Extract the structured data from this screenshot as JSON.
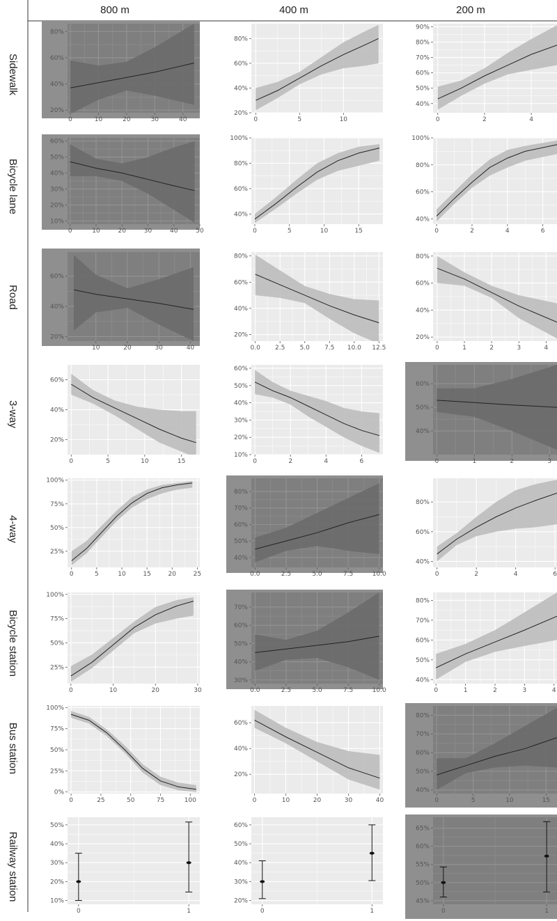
{
  "figure": {
    "columns": [
      "800 m",
      "400 m",
      "200 m"
    ],
    "rows": [
      "Sidewalk",
      "Bicycle lane",
      "Road",
      "3-way",
      "4-way",
      "Bicycle station",
      "Bus station",
      "Railway station"
    ],
    "panel_bg_normal": "#ebebeb",
    "panel_bg_dim": "#8f8f8f",
    "ribbon_color": "#bdbdbd",
    "line_color": "#222222",
    "gridline_color": "#ffffff"
  },
  "chart_data": [
    {
      "type": "line",
      "row": "Sidewalk",
      "column": "800 m",
      "dim": true,
      "xlim": [
        -1,
        46
      ],
      "ylim": [
        0.18,
        0.86
      ],
      "xticks": [
        0,
        10,
        20,
        30,
        40
      ],
      "yticks": [
        0.2,
        0.4,
        0.6,
        0.8
      ],
      "ytick_format": "percent",
      "x": [
        0,
        10,
        20,
        30,
        44
      ],
      "y": [
        0.37,
        0.41,
        0.45,
        0.49,
        0.56
      ],
      "lower": [
        0.17,
        0.28,
        0.35,
        0.31,
        0.24
      ],
      "upper": [
        0.58,
        0.54,
        0.57,
        0.68,
        0.86
      ]
    },
    {
      "type": "line",
      "row": "Sidewalk",
      "column": "400 m",
      "dim": false,
      "xlim": [
        -0.5,
        14.5
      ],
      "ylim": [
        0.2,
        0.92
      ],
      "xticks": [
        0,
        5,
        10
      ],
      "yticks": [
        0.2,
        0.4,
        0.6,
        0.8
      ],
      "ytick_format": "percent",
      "x": [
        0,
        2.5,
        5,
        7.5,
        10,
        12.5,
        14
      ],
      "y": [
        0.3,
        0.38,
        0.48,
        0.58,
        0.67,
        0.75,
        0.8
      ],
      "lower": [
        0.22,
        0.32,
        0.43,
        0.51,
        0.56,
        0.58,
        0.6
      ],
      "upper": [
        0.4,
        0.45,
        0.53,
        0.65,
        0.77,
        0.86,
        0.91
      ]
    },
    {
      "type": "line",
      "row": "Sidewalk",
      "column": "200 m",
      "dim": false,
      "xlim": [
        -0.2,
        5.1
      ],
      "ylim": [
        0.34,
        0.92
      ],
      "xticks": [
        0,
        2,
        4
      ],
      "yticks": [
        0.4,
        0.5,
        0.6,
        0.7,
        0.8,
        0.9
      ],
      "ytick_format": "percent",
      "x": [
        0,
        1,
        2,
        3,
        4,
        5.1
      ],
      "y": [
        0.43,
        0.5,
        0.58,
        0.65,
        0.72,
        0.78
      ],
      "lower": [
        0.36,
        0.45,
        0.53,
        0.59,
        0.62,
        0.65
      ],
      "upper": [
        0.51,
        0.55,
        0.63,
        0.73,
        0.82,
        0.91
      ]
    },
    {
      "type": "line",
      "row": "Bicycle lane",
      "column": "800 m",
      "dim": true,
      "xlim": [
        -1,
        50
      ],
      "ylim": [
        0.08,
        0.62
      ],
      "xticks": [
        0,
        10,
        20,
        30,
        40,
        50
      ],
      "yticks": [
        0.1,
        0.2,
        0.3,
        0.4,
        0.5,
        0.6
      ],
      "ytick_format": "percent",
      "x": [
        0,
        10,
        20,
        30,
        40,
        48
      ],
      "y": [
        0.47,
        0.43,
        0.4,
        0.36,
        0.32,
        0.29
      ],
      "lower": [
        0.38,
        0.38,
        0.35,
        0.27,
        0.17,
        0.09
      ],
      "upper": [
        0.58,
        0.49,
        0.46,
        0.5,
        0.56,
        0.6
      ]
    },
    {
      "type": "line",
      "row": "Bicycle lane",
      "column": "400 m",
      "dim": false,
      "xlim": [
        -0.5,
        18.5
      ],
      "ylim": [
        0.32,
        1.0
      ],
      "xticks": [
        0,
        5,
        10,
        15
      ],
      "yticks": [
        0.4,
        0.6,
        0.8,
        1.0
      ],
      "ytick_format": "percent",
      "x": [
        0,
        3,
        6,
        9,
        12,
        15,
        18
      ],
      "y": [
        0.36,
        0.48,
        0.61,
        0.73,
        0.82,
        0.88,
        0.92
      ],
      "lower": [
        0.33,
        0.44,
        0.56,
        0.67,
        0.74,
        0.78,
        0.82
      ],
      "upper": [
        0.4,
        0.53,
        0.67,
        0.8,
        0.88,
        0.93,
        0.95
      ]
    },
    {
      "type": "line",
      "row": "Bicycle lane",
      "column": "200 m",
      "dim": false,
      "xlim": [
        -0.2,
        6.8
      ],
      "ylim": [
        0.36,
        1.0
      ],
      "xticks": [
        0,
        2,
        4,
        6
      ],
      "yticks": [
        0.4,
        0.6,
        0.8,
        1.0
      ],
      "ytick_format": "percent",
      "x": [
        0,
        1,
        2,
        3,
        4,
        5,
        6.8
      ],
      "y": [
        0.42,
        0.55,
        0.67,
        0.78,
        0.85,
        0.9,
        0.95
      ],
      "lower": [
        0.38,
        0.51,
        0.63,
        0.72,
        0.78,
        0.83,
        0.88
      ],
      "upper": [
        0.47,
        0.6,
        0.73,
        0.84,
        0.91,
        0.94,
        0.98
      ]
    },
    {
      "type": "line",
      "row": "Road",
      "column": "800 m",
      "dim": true,
      "xlim": [
        1,
        43
      ],
      "ylim": [
        0.17,
        0.76
      ],
      "xticks": [
        10,
        20,
        30,
        40
      ],
      "yticks": [
        0.2,
        0.4,
        0.6
      ],
      "ytick_format": "percent",
      "x": [
        3,
        10,
        20,
        30,
        41
      ],
      "y": [
        0.51,
        0.48,
        0.45,
        0.42,
        0.38
      ],
      "lower": [
        0.24,
        0.36,
        0.39,
        0.28,
        0.17
      ],
      "upper": [
        0.74,
        0.61,
        0.52,
        0.58,
        0.66
      ]
    },
    {
      "type": "line",
      "row": "Road",
      "column": "400 m",
      "dim": false,
      "xlim": [
        -0.4,
        12.9
      ],
      "ylim": [
        0.15,
        0.83
      ],
      "xticks": [
        0,
        2.5,
        5,
        7.5,
        10,
        12.5
      ],
      "xtick_labels": [
        "0.0",
        "2.5",
        "5.0",
        "7.5",
        "10.0",
        "12.5"
      ],
      "yticks": [
        0.2,
        0.4,
        0.6,
        0.8
      ],
      "ytick_format": "percent",
      "x": [
        0,
        2.5,
        5,
        7.5,
        10,
        12.5
      ],
      "y": [
        0.66,
        0.58,
        0.5,
        0.42,
        0.35,
        0.29
      ],
      "lower": [
        0.5,
        0.48,
        0.44,
        0.32,
        0.21,
        0.13
      ],
      "upper": [
        0.81,
        0.69,
        0.57,
        0.51,
        0.47,
        0.46
      ]
    },
    {
      "type": "line",
      "row": "Road",
      "column": "200 m",
      "dim": false,
      "xlim": [
        -0.15,
        4.4
      ],
      "ylim": [
        0.17,
        0.83
      ],
      "xticks": [
        0,
        1,
        2,
        3,
        4
      ],
      "yticks": [
        0.2,
        0.4,
        0.6,
        0.8
      ],
      "ytick_format": "percent",
      "x": [
        0,
        1,
        2,
        3,
        4.4
      ],
      "y": [
        0.71,
        0.63,
        0.53,
        0.43,
        0.31
      ],
      "lower": [
        0.6,
        0.58,
        0.49,
        0.34,
        0.19
      ],
      "upper": [
        0.8,
        0.68,
        0.58,
        0.51,
        0.45
      ]
    },
    {
      "type": "line",
      "row": "3-way",
      "column": "800 m",
      "dim": false,
      "xlim": [
        -0.5,
        17.5
      ],
      "ylim": [
        0.1,
        0.7
      ],
      "xticks": [
        0,
        5,
        10,
        15
      ],
      "yticks": [
        0.2,
        0.4,
        0.6
      ],
      "ytick_format": "percent",
      "x": [
        0,
        3,
        6,
        9,
        12,
        15,
        17
      ],
      "y": [
        0.57,
        0.48,
        0.41,
        0.34,
        0.27,
        0.21,
        0.18
      ],
      "lower": [
        0.5,
        0.44,
        0.36,
        0.27,
        0.18,
        0.12,
        0.08
      ],
      "upper": [
        0.64,
        0.53,
        0.46,
        0.42,
        0.4,
        0.39,
        0.39
      ]
    },
    {
      "type": "line",
      "row": "3-way",
      "column": "400 m",
      "dim": false,
      "xlim": [
        -0.2,
        7.2
      ],
      "ylim": [
        0.1,
        0.62
      ],
      "xticks": [
        0,
        2,
        4,
        6
      ],
      "yticks": [
        0.1,
        0.2,
        0.3,
        0.4,
        0.5,
        0.6
      ],
      "ytick_format": "percent",
      "x": [
        0,
        1,
        2,
        3,
        4,
        5,
        6,
        7
      ],
      "y": [
        0.52,
        0.47,
        0.43,
        0.38,
        0.33,
        0.28,
        0.24,
        0.21
      ],
      "lower": [
        0.45,
        0.43,
        0.39,
        0.32,
        0.26,
        0.2,
        0.15,
        0.11
      ],
      "upper": [
        0.59,
        0.52,
        0.47,
        0.44,
        0.41,
        0.37,
        0.35,
        0.34
      ]
    },
    {
      "type": "line",
      "row": "3-way",
      "column": "200 m",
      "dim": true,
      "xlim": [
        -0.1,
        3.2
      ],
      "ylim": [
        0.3,
        0.68
      ],
      "xticks": [
        0,
        1,
        2,
        3
      ],
      "yticks": [
        0.4,
        0.5,
        0.6
      ],
      "ytick_format": "percent",
      "x": [
        0,
        1,
        2,
        3.2
      ],
      "y": [
        0.53,
        0.52,
        0.51,
        0.5
      ],
      "lower": [
        0.48,
        0.46,
        0.4,
        0.32
      ],
      "upper": [
        0.58,
        0.58,
        0.62,
        0.68
      ]
    },
    {
      "type": "line",
      "row": "4-way",
      "column": "800 m",
      "dim": false,
      "xlim": [
        -0.8,
        25.5
      ],
      "ylim": [
        0.08,
        1.02
      ],
      "xticks": [
        0,
        5,
        10,
        15,
        20,
        25
      ],
      "yticks": [
        0.25,
        0.5,
        0.75,
        1.0
      ],
      "ytick_format": "percent",
      "x": [
        0,
        3,
        6,
        9,
        12,
        15,
        18,
        21,
        24
      ],
      "y": [
        0.15,
        0.28,
        0.45,
        0.62,
        0.76,
        0.86,
        0.92,
        0.95,
        0.97
      ],
      "lower": [
        0.1,
        0.23,
        0.4,
        0.57,
        0.71,
        0.8,
        0.86,
        0.9,
        0.92
      ],
      "upper": [
        0.25,
        0.36,
        0.52,
        0.68,
        0.82,
        0.9,
        0.95,
        0.97,
        0.99
      ]
    },
    {
      "type": "line",
      "row": "4-way",
      "column": "400 m",
      "dim": true,
      "xlim": [
        -0.3,
        10.3
      ],
      "ylim": [
        0.34,
        0.88
      ],
      "xticks": [
        0,
        2.5,
        5,
        7.5,
        10
      ],
      "xtick_labels": [
        "0.0",
        "2.5",
        "5.0",
        "7.5",
        "10.0"
      ],
      "yticks": [
        0.4,
        0.5,
        0.6,
        0.7,
        0.8
      ],
      "ytick_format": "percent",
      "x": [
        0,
        2.5,
        5,
        7.5,
        10
      ],
      "y": [
        0.45,
        0.5,
        0.55,
        0.61,
        0.66
      ],
      "lower": [
        0.37,
        0.44,
        0.47,
        0.44,
        0.42
      ],
      "upper": [
        0.52,
        0.58,
        0.67,
        0.76,
        0.85
      ]
    },
    {
      "type": "line",
      "row": "4-way",
      "column": "200 m",
      "dim": false,
      "xlim": [
        -0.2,
        6.1
      ],
      "ylim": [
        0.36,
        0.96
      ],
      "xticks": [
        0,
        2,
        4,
        6
      ],
      "yticks": [
        0.4,
        0.6,
        0.8
      ],
      "ytick_format": "percent",
      "x": [
        0,
        1,
        2,
        3,
        4,
        5,
        6.1
      ],
      "y": [
        0.45,
        0.55,
        0.63,
        0.7,
        0.76,
        0.81,
        0.86
      ],
      "lower": [
        0.4,
        0.51,
        0.57,
        0.6,
        0.62,
        0.63,
        0.65
      ],
      "upper": [
        0.5,
        0.59,
        0.7,
        0.8,
        0.88,
        0.92,
        0.95
      ]
    },
    {
      "type": "line",
      "row": "Bicycle station",
      "column": "800 m",
      "dim": false,
      "xlim": [
        -0.8,
        30.5
      ],
      "ylim": [
        0.08,
        1.02
      ],
      "xticks": [
        0,
        10,
        20,
        30
      ],
      "yticks": [
        0.25,
        0.5,
        0.75,
        1.0
      ],
      "ytick_format": "percent",
      "x": [
        0,
        5,
        10,
        15,
        20,
        25,
        29
      ],
      "y": [
        0.16,
        0.3,
        0.48,
        0.66,
        0.79,
        0.88,
        0.93
      ],
      "lower": [
        0.1,
        0.24,
        0.42,
        0.6,
        0.7,
        0.75,
        0.78
      ],
      "upper": [
        0.26,
        0.38,
        0.55,
        0.72,
        0.87,
        0.94,
        0.97
      ]
    },
    {
      "type": "line",
      "row": "Bicycle station",
      "column": "400 m",
      "dim": true,
      "xlim": [
        -0.3,
        10.3
      ],
      "ylim": [
        0.28,
        0.78
      ],
      "xticks": [
        0,
        2.5,
        5,
        7.5,
        10
      ],
      "xtick_labels": [
        "0.0",
        "2.5",
        "5.0",
        "7.5",
        "10.0"
      ],
      "yticks": [
        0.3,
        0.4,
        0.5,
        0.6,
        0.7
      ],
      "ytick_format": "percent",
      "x": [
        0,
        2.5,
        5,
        7.5,
        10
      ],
      "y": [
        0.45,
        0.47,
        0.49,
        0.51,
        0.54
      ],
      "lower": [
        0.35,
        0.41,
        0.42,
        0.37,
        0.3
      ],
      "upper": [
        0.55,
        0.52,
        0.57,
        0.67,
        0.78
      ]
    },
    {
      "type": "line",
      "row": "Bicycle station",
      "column": "200 m",
      "dim": false,
      "xlim": [
        -0.1,
        4.1
      ],
      "ylim": [
        0.38,
        0.84
      ],
      "xticks": [
        0,
        1,
        2,
        3,
        4
      ],
      "yticks": [
        0.4,
        0.5,
        0.6,
        0.7,
        0.8
      ],
      "ytick_format": "percent",
      "x": [
        0,
        1,
        2,
        3,
        4.1
      ],
      "y": [
        0.46,
        0.53,
        0.59,
        0.65,
        0.72
      ],
      "lower": [
        0.4,
        0.49,
        0.54,
        0.57,
        0.6
      ],
      "upper": [
        0.53,
        0.58,
        0.65,
        0.74,
        0.84
      ]
    },
    {
      "type": "line",
      "row": "Bus station",
      "column": "800 m",
      "dim": false,
      "xlim": [
        -3,
        108
      ],
      "ylim": [
        -0.02,
        1.02
      ],
      "xticks": [
        0,
        25,
        50,
        75,
        100
      ],
      "yticks": [
        0,
        0.25,
        0.5,
        0.75,
        1.0
      ],
      "ytick_format": "percent",
      "x": [
        0,
        15,
        30,
        45,
        60,
        75,
        90,
        105
      ],
      "y": [
        0.92,
        0.85,
        0.7,
        0.5,
        0.28,
        0.13,
        0.06,
        0.03
      ],
      "lower": [
        0.88,
        0.81,
        0.66,
        0.46,
        0.23,
        0.08,
        0.02,
        0.0
      ],
      "upper": [
        0.96,
        0.89,
        0.74,
        0.55,
        0.33,
        0.18,
        0.11,
        0.08
      ]
    },
    {
      "type": "line",
      "row": "Bus station",
      "column": "400 m",
      "dim": false,
      "xlim": [
        -1,
        41
      ],
      "ylim": [
        0.05,
        0.73
      ],
      "xticks": [
        0,
        10,
        20,
        30,
        40
      ],
      "yticks": [
        0.2,
        0.4,
        0.6
      ],
      "ytick_format": "percent",
      "x": [
        0,
        10,
        20,
        30,
        40
      ],
      "y": [
        0.62,
        0.49,
        0.37,
        0.25,
        0.17
      ],
      "lower": [
        0.56,
        0.44,
        0.3,
        0.16,
        0.08
      ],
      "upper": [
        0.7,
        0.56,
        0.45,
        0.38,
        0.35
      ]
    },
    {
      "type": "line",
      "row": "Bus station",
      "column": "200 m",
      "dim": true,
      "xlim": [
        -0.5,
        16.5
      ],
      "ylim": [
        0.38,
        0.85
      ],
      "xticks": [
        0,
        5,
        10,
        15
      ],
      "yticks": [
        0.4,
        0.5,
        0.6,
        0.7,
        0.8
      ],
      "ytick_format": "percent",
      "x": [
        0,
        4,
        8,
        12,
        16.5
      ],
      "y": [
        0.48,
        0.53,
        0.58,
        0.62,
        0.68
      ],
      "lower": [
        0.4,
        0.49,
        0.52,
        0.53,
        0.52
      ],
      "upper": [
        0.57,
        0.57,
        0.65,
        0.74,
        0.84
      ]
    },
    {
      "type": "errorbar",
      "row": "Railway station",
      "column": "800 m",
      "dim": false,
      "xlim": [
        -0.1,
        1.1
      ],
      "ylim": [
        0.08,
        0.54
      ],
      "xticks": [
        0,
        1
      ],
      "yticks": [
        0.1,
        0.2,
        0.3,
        0.4,
        0.5
      ],
      "ytick_format": "percent",
      "x": [
        0,
        1
      ],
      "y": [
        0.2,
        0.3
      ],
      "lower": [
        0.1,
        0.145
      ],
      "upper": [
        0.35,
        0.515
      ]
    },
    {
      "type": "errorbar",
      "row": "Railway station",
      "column": "400 m",
      "dim": false,
      "xlim": [
        -0.1,
        1.1
      ],
      "ylim": [
        0.18,
        0.64
      ],
      "xticks": [
        0,
        1
      ],
      "yticks": [
        0.2,
        0.3,
        0.4,
        0.5,
        0.6
      ],
      "ytick_format": "percent",
      "x": [
        0,
        1
      ],
      "y": [
        0.3,
        0.45
      ],
      "lower": [
        0.21,
        0.305
      ],
      "upper": [
        0.41,
        0.6
      ]
    },
    {
      "type": "errorbar",
      "row": "Railway station",
      "column": "200 m",
      "dim": true,
      "xlim": [
        -0.1,
        1.1
      ],
      "ylim": [
        0.44,
        0.68
      ],
      "xticks": [
        0,
        1
      ],
      "yticks": [
        0.45,
        0.5,
        0.55,
        0.6,
        0.65
      ],
      "ytick_format": "percent",
      "x": [
        0,
        1
      ],
      "y": [
        0.5,
        0.573
      ],
      "lower": [
        0.46,
        0.474
      ],
      "upper": [
        0.543,
        0.668
      ]
    }
  ]
}
